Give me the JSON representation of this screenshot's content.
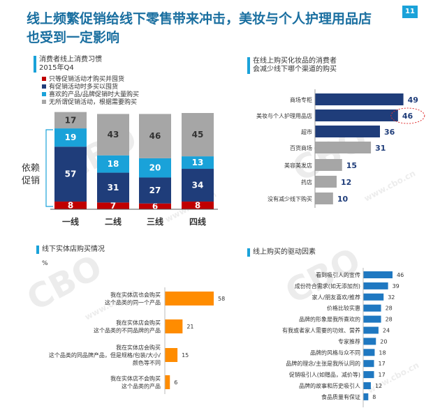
{
  "header": {
    "title_line1": "线上频繁促销给线下零售带来冲击，美妆与个人护理用品店",
    "title_line2": "也受到一定影响",
    "page_number": "11"
  },
  "watermark": {
    "logo": "CBO",
    "site": "www.cbo.cn"
  },
  "chart_data": [
    {
      "type": "bar",
      "stacked": true,
      "title": "消费者线上消费习惯",
      "subtitle": "2015年Q4",
      "categories": [
        "一线",
        "二线",
        "三线",
        "四线"
      ],
      "series": [
        {
          "name": "只等促销活动才购买并囤货",
          "color": "#c00000",
          "values": [
            8,
            7,
            6,
            8
          ]
        },
        {
          "name": "有促销活动时多买以囤货",
          "color": "#1f3d7a",
          "values": [
            57,
            31,
            27,
            34
          ]
        },
        {
          "name": "喜欢的产品/品牌促销时大量购买",
          "color": "#1aa2d9",
          "values": [
            19,
            18,
            20,
            13
          ]
        },
        {
          "name": "无所谓促销活动，根据需要购买",
          "color": "#a6a6a6",
          "values": [
            17,
            43,
            46,
            45
          ]
        }
      ],
      "annotation": "依赖促销",
      "ylim": [
        0,
        100
      ]
    },
    {
      "type": "bar",
      "orientation": "horizontal",
      "title": "在线上购买化妆品的消费者",
      "subtitle": "会减少线下哪个渠道的购买",
      "categories": [
        "商场专柜",
        "美妆与个人护理用品店",
        "超市",
        "百货商场",
        "美容美发店",
        "药店",
        "没有减少线下购买"
      ],
      "values": [
        49,
        46,
        36,
        31,
        15,
        12,
        10
      ],
      "colors": [
        "#1f3d7a",
        "#1f3d7a",
        "#1f3d7a",
        "#a6a6a6",
        "#a6a6a6",
        "#a6a6a6",
        "#a6a6a6"
      ],
      "highlight_index": 1,
      "xlim": [
        0,
        60
      ]
    },
    {
      "type": "bar",
      "orientation": "horizontal",
      "title": "线下实体店购买情况",
      "unit": "%",
      "categories": [
        "我在实体店也会购买\n这个品类的同一个产品",
        "我在实体店会购买\n这个品类的不同品牌的产品",
        "我在实体店会购买\n这个品类的同品牌产品，但是规格/包装/大小/\n颜色等不同",
        "我在实体店不会购买\n这个品类的产品"
      ],
      "values": [
        58,
        21,
        15,
        6
      ],
      "color": "#ff8c00",
      "xlim": [
        0,
        70
      ]
    },
    {
      "type": "bar",
      "orientation": "horizontal",
      "title": "线上购买的驱动因素",
      "categories": [
        "看到吸引人的宣传",
        "成份符合需求(如无添加剂)",
        "家人/朋友喜欢/推荐",
        "价格比较实惠",
        "品牌的形象是我所喜欢的",
        "有我或者家人需要的功效、营养",
        "专家推荐",
        "品牌的风格与众不同",
        "品牌的理念/主张是我所认同的",
        "促销吸引人(如赠品，减价等)",
        "品牌的故事和历史吸引人",
        "食品质量有保证"
      ],
      "values": [
        46,
        39,
        32,
        28,
        28,
        24,
        20,
        18,
        17,
        17,
        12,
        8
      ],
      "color": "#1f78c1",
      "xlim": [
        0,
        60
      ]
    }
  ]
}
